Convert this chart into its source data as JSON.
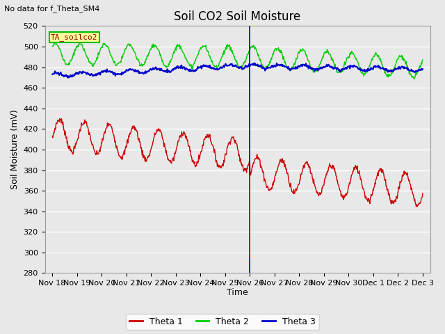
{
  "title": "Soil CO2 Soil Moisture",
  "no_data_text": "No data for f_Theta_SM4",
  "ylabel": "Soil Moisture (mV)",
  "xlabel": "Time",
  "ylim": [
    280,
    520
  ],
  "yticks": [
    280,
    300,
    320,
    340,
    360,
    380,
    400,
    420,
    440,
    460,
    480,
    500,
    520
  ],
  "xtick_labels": [
    "Nov 18",
    "Nov 19",
    "Nov 20",
    "Nov 21",
    "Nov 22",
    "Nov 23",
    "Nov 24",
    "Nov 25",
    "Nov 26",
    "Nov 27",
    "Nov 28",
    "Nov 29",
    "Nov 30",
    "Dec 1",
    "Dec 2",
    "Dec 3"
  ],
  "bg_color": "#e8e8e8",
  "fig_color": "#e8e8e8",
  "vline_x": 8.0,
  "legend_box_text": "TA_soilco2",
  "legend_box_color": "#ffff99",
  "legend_box_border": "#00bb00",
  "theta1_color": "#cc0000",
  "theta2_color": "#00cc00",
  "theta3_color": "#0000cc",
  "legend_entries": [
    "Theta 1",
    "Theta 2",
    "Theta 3"
  ],
  "title_fontsize": 12,
  "axis_label_fontsize": 9,
  "tick_fontsize": 8
}
